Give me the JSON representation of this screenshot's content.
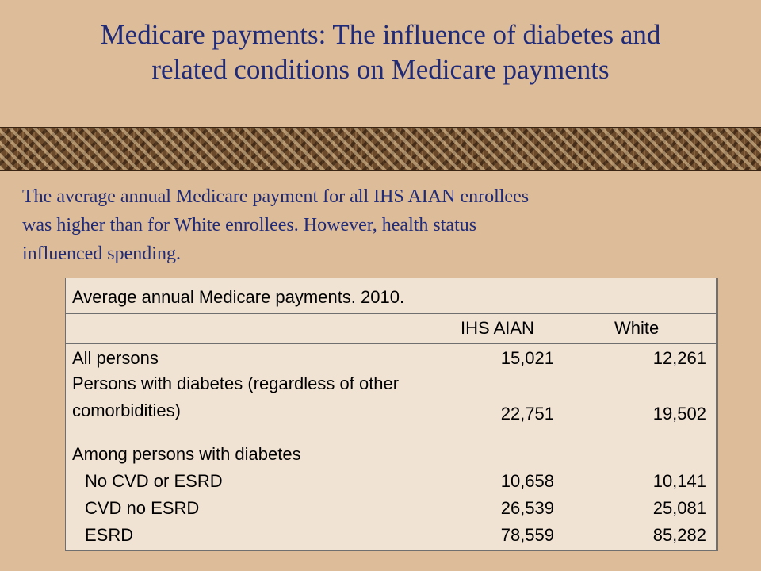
{
  "slide": {
    "title_line1": "Medicare payments:  The influence of diabetes and",
    "title_line2": "related conditions on Medicare payments",
    "intro_line1": "The average annual Medicare payment for all IHS AIAN enrollees",
    "intro_line2": "was higher than for White enrollees. However, health status",
    "intro_line3": "influenced spending."
  },
  "table": {
    "caption": "Average annual Medicare payments. 2010.",
    "columns": [
      "IHS AIAN",
      "White"
    ],
    "rows": [
      {
        "label": "All persons",
        "aian": "15,021",
        "white": "12,261"
      },
      {
        "label": "Persons with diabetes (regardless of other",
        "aian": "",
        "white": ""
      },
      {
        "label": "comorbidities)",
        "aian": "22,751",
        "white": "19,502"
      },
      {
        "label": "Among persons with diabetes",
        "aian": "",
        "white": ""
      },
      {
        "label": "No CVD or ESRD",
        "aian": "10,658",
        "white": "10,141"
      },
      {
        "label": "CVD no ESRD",
        "aian": "26,539",
        "white": "25,081"
      },
      {
        "label": "ESRD",
        "aian": "78,559",
        "white": "85,282"
      }
    ]
  }
}
